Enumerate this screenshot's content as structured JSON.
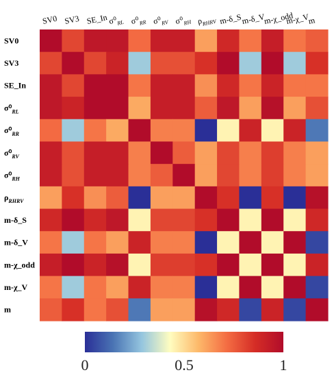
{
  "chart_data": {
    "type": "heatmap",
    "title": "",
    "labels": [
      {
        "base": "SV0",
        "sub": ""
      },
      {
        "base": "SV3",
        "sub": ""
      },
      {
        "base": "SE_In",
        "sub": ""
      },
      {
        "base": "σ⁰",
        "sub": "RL"
      },
      {
        "base": "σ⁰",
        "sub": "RR"
      },
      {
        "base": "σ⁰",
        "sub": "RV"
      },
      {
        "base": "σ⁰",
        "sub": "RH"
      },
      {
        "base": "ρ",
        "sub": "RHRV"
      },
      {
        "base": "m-δ_S",
        "sub": ""
      },
      {
        "base": "m-δ_V",
        "sub": ""
      },
      {
        "base": "m-χ_odd",
        "sub": ""
      },
      {
        "base": "m-χ_V",
        "sub": ""
      },
      {
        "base": "m",
        "sub": ""
      }
    ],
    "values": [
      [
        1.0,
        0.8,
        0.95,
        0.95,
        0.72,
        0.92,
        0.92,
        0.62,
        0.88,
        0.7,
        0.92,
        0.7,
        0.75
      ],
      [
        0.8,
        1.0,
        0.8,
        0.9,
        0.3,
        0.78,
        0.78,
        0.85,
        1.0,
        0.3,
        1.0,
        0.3,
        0.85
      ],
      [
        0.95,
        0.8,
        1.0,
        1.0,
        0.7,
        0.92,
        0.92,
        0.65,
        0.88,
        0.7,
        0.9,
        0.7,
        0.7
      ],
      [
        0.95,
        0.9,
        1.0,
        1.0,
        0.6,
        0.92,
        0.92,
        0.75,
        0.95,
        0.62,
        0.98,
        0.62,
        0.78
      ],
      [
        0.72,
        0.3,
        0.7,
        0.6,
        1.0,
        0.68,
        0.68,
        0.0,
        0.45,
        0.9,
        0.45,
        0.9,
        0.15
      ],
      [
        0.92,
        0.78,
        0.92,
        0.92,
        0.68,
        1.0,
        0.75,
        0.62,
        0.8,
        0.68,
        0.82,
        0.68,
        0.62
      ],
      [
        0.92,
        0.78,
        0.92,
        0.92,
        0.68,
        0.75,
        1.0,
        0.62,
        0.8,
        0.68,
        0.82,
        0.68,
        0.62
      ],
      [
        0.62,
        0.85,
        0.65,
        0.75,
        0.0,
        0.62,
        0.62,
        1.0,
        0.85,
        0.0,
        0.85,
        0.0,
        0.98
      ],
      [
        0.88,
        1.0,
        0.88,
        0.95,
        0.45,
        0.8,
        0.8,
        0.85,
        1.0,
        0.45,
        1.0,
        0.45,
        0.88
      ],
      [
        0.7,
        0.3,
        0.7,
        0.62,
        0.9,
        0.68,
        0.68,
        0.0,
        0.45,
        1.0,
        0.45,
        1.0,
        0.05
      ],
      [
        0.92,
        1.0,
        0.9,
        0.98,
        0.45,
        0.82,
        0.82,
        0.85,
        1.0,
        0.45,
        1.0,
        0.45,
        0.9
      ],
      [
        0.7,
        0.3,
        0.7,
        0.62,
        0.9,
        0.68,
        0.68,
        0.0,
        0.45,
        1.0,
        0.45,
        1.0,
        0.05
      ],
      [
        0.75,
        0.85,
        0.7,
        0.78,
        0.15,
        0.62,
        0.62,
        0.98,
        0.88,
        0.05,
        0.9,
        0.05,
        1.0
      ]
    ],
    "colorbar": {
      "min": 0,
      "max": 1,
      "ticks": [
        {
          "value": 0,
          "label": "0"
        },
        {
          "value": 0.5,
          "label": "0.5"
        },
        {
          "value": 1,
          "label": "1"
        }
      ],
      "colormap": [
        "#2a2f97",
        "#4a74b4",
        "#94c5df",
        "#fffdc0",
        "#fdb96a",
        "#f46d43",
        "#d52d26",
        "#b10c2a"
      ]
    },
    "grid": false,
    "legend": "bottom"
  }
}
